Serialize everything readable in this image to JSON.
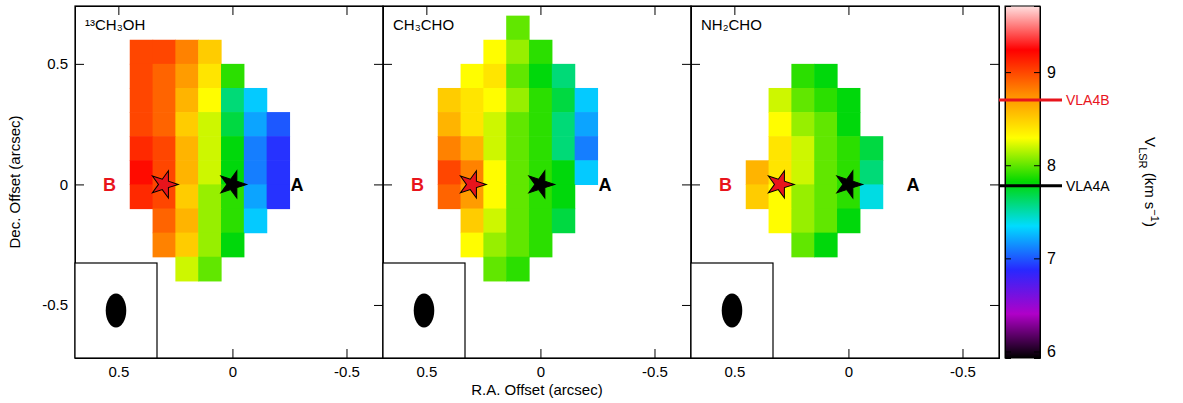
{
  "chart_data": [
    {
      "type": "heatmap",
      "title": "¹³CH₃OH",
      "x": [
        0.4,
        0.3,
        0.2,
        0.1,
        0,
        -0.1,
        -0.2
      ],
      "y": [
        0.55,
        0.45,
        0.35,
        0.25,
        0.15,
        0.05,
        -0.05,
        -0.15,
        -0.25,
        -0.35
      ],
      "cells": [
        [
          9.0,
          9.0,
          8.8,
          8.5,
          null,
          null,
          null
        ],
        [
          9.0,
          8.9,
          8.7,
          8.4,
          7.9,
          null,
          null
        ],
        [
          9.0,
          8.9,
          8.6,
          8.3,
          7.6,
          7.3,
          null
        ],
        [
          9.0,
          8.9,
          8.5,
          8.2,
          7.7,
          7.2,
          7.0
        ],
        [
          9.1,
          9.0,
          8.6,
          8.2,
          7.8,
          7.1,
          6.9
        ],
        [
          9.2,
          9.0,
          8.6,
          8.2,
          7.8,
          7.1,
          6.9
        ],
        [
          9.1,
          9.0,
          8.5,
          8.1,
          7.9,
          7.2,
          6.9
        ],
        [
          null,
          8.9,
          8.6,
          8.1,
          7.9,
          7.3,
          null
        ],
        [
          null,
          8.8,
          8.5,
          8.1,
          7.8,
          null,
          null
        ],
        [
          null,
          null,
          8.2,
          8.0,
          null,
          null,
          null
        ]
      ],
      "xlim": [
        0.69,
        -0.66
      ],
      "ylim": [
        -0.72,
        0.74
      ],
      "xticks": [
        0.5,
        0,
        -0.5
      ],
      "yticks": [
        -0.5,
        0,
        0.5
      ],
      "tick_labels": true,
      "sources": [
        {
          "label": "B",
          "x": 0.3,
          "y": 0,
          "color": "#e8141c"
        },
        {
          "label": "A",
          "x": 0,
          "y": 0,
          "color": "#000000"
        }
      ],
      "beam": [
        0.09,
        0.14
      ]
    },
    {
      "type": "heatmap",
      "title": "CH₃CHO",
      "x": [
        0.4,
        0.3,
        0.2,
        0.1,
        0,
        -0.1,
        -0.2
      ],
      "y": [
        0.65,
        0.55,
        0.45,
        0.35,
        0.25,
        0.15,
        0.05,
        -0.05,
        -0.15,
        -0.25,
        -0.35
      ],
      "cells": [
        [
          null,
          null,
          null,
          8.0,
          null,
          null,
          null
        ],
        [
          null,
          null,
          8.3,
          8.1,
          7.9,
          null,
          null
        ],
        [
          null,
          8.3,
          8.4,
          8.0,
          7.8,
          7.6,
          null
        ],
        [
          8.5,
          8.4,
          8.3,
          8.1,
          7.9,
          7.7,
          7.3
        ],
        [
          8.6,
          8.4,
          8.2,
          8.0,
          7.9,
          7.6,
          7.2
        ],
        [
          8.8,
          8.6,
          8.2,
          8.0,
          7.9,
          7.6,
          7.1
        ],
        [
          9.0,
          8.8,
          8.3,
          8.0,
          7.9,
          7.8,
          7.3
        ],
        [
          8.9,
          8.7,
          8.3,
          8.0,
          7.9,
          7.8,
          null
        ],
        [
          null,
          8.5,
          8.2,
          8.0,
          7.9,
          7.7,
          null
        ],
        [
          null,
          8.3,
          8.1,
          8.0,
          7.9,
          null,
          null
        ],
        [
          null,
          null,
          8.0,
          7.9,
          null,
          null,
          null
        ]
      ],
      "xlim": [
        0.69,
        -0.66
      ],
      "ylim": [
        -0.72,
        0.74
      ],
      "xticks": [
        0.5,
        0,
        -0.5
      ],
      "yticks": [
        -0.5,
        0,
        0.5
      ],
      "tick_labels": "x",
      "sources": [
        {
          "label": "B",
          "x": 0.3,
          "y": 0,
          "color": "#e8141c"
        },
        {
          "label": "A",
          "x": 0,
          "y": 0,
          "color": "#000000"
        }
      ],
      "beam": [
        0.09,
        0.14
      ]
    },
    {
      "type": "heatmap",
      "title": "NH₂CHO",
      "x": [
        0.4,
        0.3,
        0.2,
        0.1,
        0,
        -0.1,
        -0.2
      ],
      "y": [
        0.45,
        0.35,
        0.25,
        0.15,
        0.05,
        -0.05,
        -0.15,
        -0.25
      ],
      "cells": [
        [
          null,
          null,
          7.9,
          7.8,
          null,
          null,
          null
        ],
        [
          null,
          8.2,
          8.0,
          7.9,
          7.8,
          null,
          null
        ],
        [
          null,
          8.3,
          8.1,
          8.0,
          7.8,
          null,
          null
        ],
        [
          null,
          8.4,
          8.2,
          8.0,
          7.9,
          7.7,
          null
        ],
        [
          8.6,
          8.4,
          8.2,
          8.0,
          7.9,
          7.6,
          null
        ],
        [
          8.5,
          8.3,
          8.1,
          8.0,
          7.9,
          7.4,
          null
        ],
        [
          null,
          8.3,
          8.1,
          8.0,
          7.8,
          null,
          null
        ],
        [
          null,
          null,
          8.0,
          7.8,
          null,
          null,
          null
        ]
      ],
      "xlim": [
        0.69,
        -0.66
      ],
      "ylim": [
        -0.72,
        0.74
      ],
      "xticks": [
        0.5,
        0,
        -0.5
      ],
      "yticks": [
        -0.5,
        0,
        0.5
      ],
      "tick_labels": "x",
      "sources": [
        {
          "label": "B",
          "x": 0.3,
          "y": 0,
          "color": "#e8141c"
        },
        {
          "label": "A",
          "x": 0,
          "y": 0,
          "color": "#000000"
        }
      ],
      "beam": [
        0.09,
        0.14
      ]
    }
  ],
  "x_label": "R.A. Offset (arcsec)",
  "y_label": "Dec. Offset (arcsec)",
  "colorbar": {
    "label": "VLSR (km s−1)",
    "clim": [
      5.93,
      9.71
    ],
    "ticks": [
      6,
      7,
      8,
      9
    ],
    "colors": [
      "#000000",
      "#b000c8",
      "#2828ff",
      "#00dcff",
      "#00d800",
      "#ffff00",
      "#ff8c00",
      "#ff0000",
      "#ffe0e0"
    ],
    "markers": [
      {
        "label": "VLA4B",
        "value": 8.7,
        "color": "#e8141c"
      },
      {
        "label": "VLA4A",
        "value": 7.78,
        "color": "#000000"
      }
    ]
  }
}
